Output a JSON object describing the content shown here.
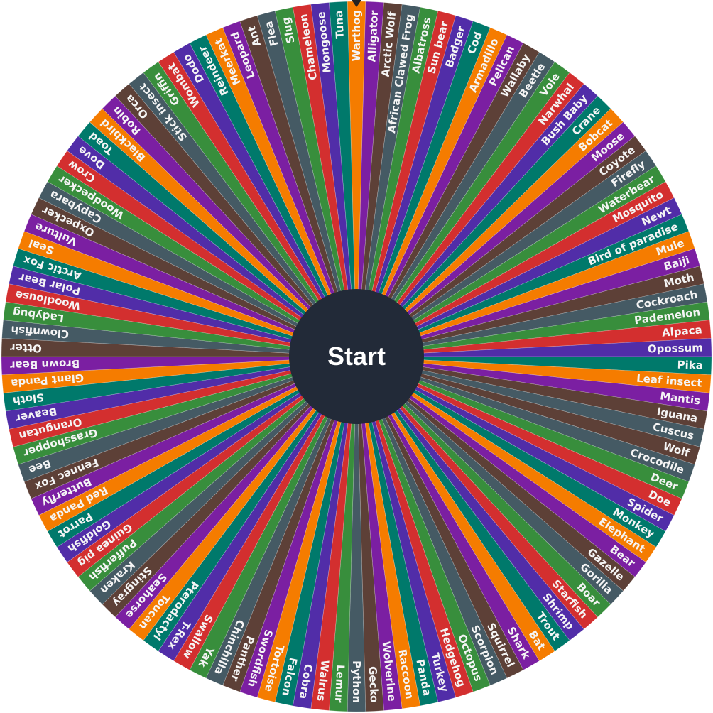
{
  "wheel": {
    "start_label": "Start",
    "palette": [
      "#f57c00",
      "#7b1fa2",
      "#5d4037",
      "#455a64",
      "#388e3c",
      "#d32f2f",
      "#512da8",
      "#00796b"
    ],
    "segments": [
      "Warthog",
      "Alligator",
      "Arctic Wolf",
      "African Clawed Frog",
      "Albatross",
      "Sun bear",
      "Badger",
      "Cod",
      "Armadillo",
      "Pelican",
      "Wallaby",
      "Beetle",
      "Vole",
      "Narwhal",
      "Bush Baby",
      "Crane",
      "Bobcat",
      "Moose",
      "Coyote",
      "Firefly",
      "Waterbear",
      "Mosquito",
      "Newt",
      "Bird of paradise",
      "Mule",
      "Baiji",
      "Moth",
      "Cockroach",
      "Pademelon",
      "Alpaca",
      "Opossum",
      "Pika",
      "Leaf insect",
      "Mantis",
      "Iguana",
      "Cuscus",
      "Wolf",
      "Crocodile",
      "Deer",
      "Doe",
      "Spider",
      "Monkey",
      "Elephant",
      "Bear",
      "Gazelle",
      "Gorilla",
      "Boar",
      "Starfish",
      "Shrimp",
      "Trout",
      "Bat",
      "Shark",
      "Squirrel",
      "Scorpion",
      "Octopus",
      "Hedgehog",
      "Turkey",
      "Panda",
      "Raccoon",
      "Wolverine",
      "Gecko",
      "Python",
      "Lemur",
      "Walrus",
      "Cobra",
      "Falcon",
      "Tortoise",
      "Swordfish",
      "Panther",
      "Chinchilla",
      "Yak",
      "Swallow",
      "T-Rex",
      "Pterodactyl",
      "Toucan",
      "Seahorse",
      "Stingray",
      "Kraken",
      "Pufferfish",
      "Guinea pig",
      "Goldfish",
      "Parrot",
      "Red Panda",
      "Butterfly",
      "Fennec Fox",
      "Bee",
      "Grasshopper",
      "Orangutan",
      "Beaver",
      "Sloth",
      "Giant Panda",
      "Brown Bear",
      "Otter",
      "Clownfish",
      "Ladybug",
      "Woodlouse",
      "Polar Bear",
      "Arctic Fox",
      "Seal",
      "Vulture",
      "Oxpecker",
      "Capybara",
      "Woodpecker",
      "Crow",
      "Dove",
      "Toad",
      "Blackbird",
      "Robin",
      "Orca",
      "Stick insect",
      "Griffin",
      "Wombat",
      "Dodo",
      "Reindeer",
      "Meerkat",
      "Leopard",
      "Ant",
      "Flea",
      "Slug",
      "Chameleon",
      "Mongoose",
      "Tuna"
    ],
    "segment_colors": [
      0,
      1,
      2,
      3,
      4,
      5,
      6,
      7,
      0,
      1,
      2,
      3,
      4,
      5,
      6,
      7,
      0,
      1,
      2,
      3,
      4,
      5,
      6,
      7,
      0,
      1,
      2,
      3,
      4,
      5,
      6,
      7,
      0,
      1,
      2,
      3,
      2,
      3,
      4,
      5,
      6,
      7,
      0,
      1,
      2,
      3,
      4,
      5,
      6,
      7,
      0,
      1,
      2,
      3,
      4,
      5,
      6,
      7,
      0,
      1,
      2,
      3,
      4,
      5,
      6,
      7,
      0,
      1,
      2,
      3,
      4,
      5,
      6,
      7,
      0,
      1,
      2,
      3,
      4,
      5,
      6,
      7,
      0,
      1,
      2,
      3,
      4,
      5,
      6,
      7,
      0,
      1,
      2,
      3,
      4,
      5,
      6,
      7,
      0,
      1,
      2,
      3,
      4,
      5,
      6,
      7,
      0,
      1,
      2,
      3,
      4,
      5,
      6,
      7,
      0,
      1,
      2,
      3,
      4,
      5,
      6,
      7
    ]
  }
}
